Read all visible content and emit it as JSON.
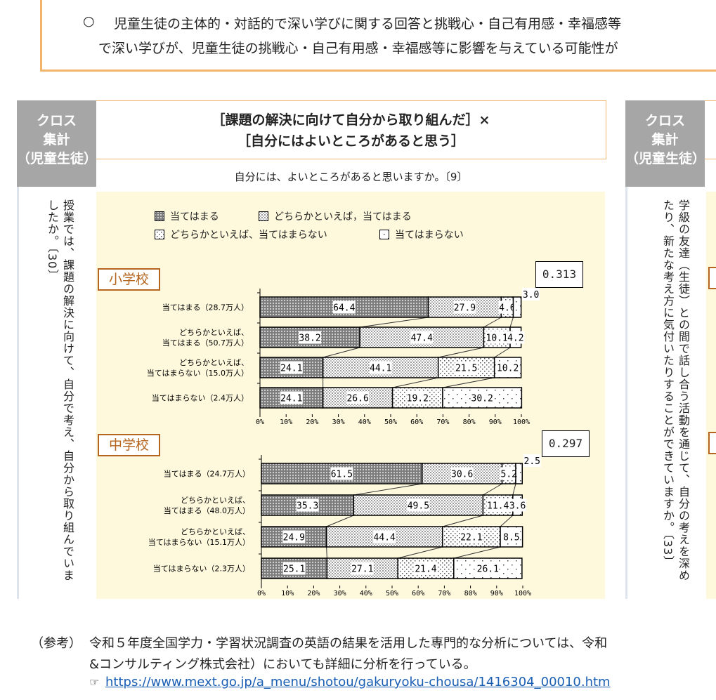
{
  "intro": {
    "bullet": "○",
    "line1": "児童生徒の主体的・対話的で深い学びに関する回答と挑戦心・自己有用感・幸福感等",
    "line2": "で深い学びが、児童生徒の挑戦心・自己有用感・幸福感等に影響を与えている可能性が"
  },
  "left_panel": {
    "badge": [
      "クロス",
      "集計",
      "（児童生徒）"
    ],
    "question": "授業では、課題の解決に向けて、自分で考え、自分から取り組んでいましたか。〔30〕"
  },
  "main": {
    "title_line1": "［課題の解決に向けて自分から取り組んだ］×",
    "title_line2": "［自分にはよいところがあると思う］",
    "subtitle": "自分には、よいところがあると思いますか。〔9〕",
    "legend": [
      "当てはまる",
      "どちらかといえば，当てはまる",
      "どちらかといえば、当てはまらない",
      "当てはまらない"
    ]
  },
  "right_panel": {
    "badge": [
      "クロス",
      "集計",
      "（児童生徒）"
    ],
    "question": "学級の友達（生徒）との間で話し合う活動を通じて、自分の考えを深めたり、新たな考え方に気付いたりすることができていますか。〔33〕"
  },
  "chart_data": [
    {
      "type": "bar",
      "orientation": "horizontal",
      "stacked": true,
      "title": "小学校",
      "coefficient": "0.313",
      "categories": [
        "当てはまる（28.7万人）",
        "どちらかといえば、\n当てはまる（50.7万人）",
        "どちらかといえば、\n当てはまらない（15.0万人）",
        "当てはまらない（2.4万人）"
      ],
      "series_values": [
        [
          64.4,
          27.9,
          4.6,
          3.0
        ],
        [
          38.2,
          47.4,
          10.1,
          4.2
        ],
        [
          24.1,
          44.1,
          21.5,
          10.2
        ],
        [
          24.1,
          26.6,
          19.2,
          30.2
        ]
      ],
      "labels": [
        [
          "64.4",
          "27.9",
          "4.6",
          "3.0"
        ],
        [
          "38.2",
          "47.4",
          "10.1",
          "4.2"
        ],
        [
          "24.1",
          "44.1",
          "21.5",
          "10.2"
        ],
        [
          "24.1",
          "26.6",
          "19.2",
          "30.2"
        ]
      ],
      "xlim": [
        0,
        100
      ],
      "xticks": [
        "0%",
        "10%",
        "20%",
        "30%",
        "40%",
        "50%",
        "60%",
        "70%",
        "80%",
        "90%",
        "100%"
      ]
    },
    {
      "type": "bar",
      "orientation": "horizontal",
      "stacked": true,
      "title": "中学校",
      "coefficient": "0.297",
      "categories": [
        "当てはまる（24.7万人）",
        "どちらかといえば、\n当てはまる（48.0万人）",
        "どちらかといえば、\n当てはまらない（15.1万人）",
        "当てはまらない（2.3万人）"
      ],
      "series_values": [
        [
          61.5,
          30.6,
          5.2,
          2.5
        ],
        [
          35.3,
          49.5,
          11.4,
          3.6
        ],
        [
          24.9,
          44.4,
          22.1,
          8.5
        ],
        [
          25.1,
          27.1,
          21.4,
          26.1
        ]
      ],
      "labels": [
        [
          "61.5",
          "30.6",
          "5.2",
          "2.5"
        ],
        [
          "35.3",
          "49.5",
          "11.4",
          "3.6"
        ],
        [
          "24.9",
          "44.4",
          "22.1",
          "8.5"
        ],
        [
          "25.1",
          "27.1",
          "21.4",
          "26.1"
        ]
      ],
      "xlim": [
        0,
        100
      ],
      "xticks": [
        "0%",
        "10%",
        "20%",
        "30%",
        "40%",
        "50%",
        "60%",
        "70%",
        "80%",
        "90%",
        "100%"
      ]
    }
  ],
  "footer": {
    "label": "（参考）",
    "line1": "令和５年度全国学力・学習状況調査の英語の結果を活用した専門的な分析については、令和",
    "line2": "&コンサルティング株式会社）においても詳細に分析を行っている。",
    "icon": "☞",
    "link": "https://www.mext.go.jp/a_menu/shotou/gakuryoku-chousa/1416304_00010.htm"
  },
  "colors": {
    "accent_orange": "#f2b36b",
    "badge_gray": "#a6a6a6",
    "chart_bg": "#fef9dd",
    "school_label": "#b5651d",
    "link": "#1a5fb4"
  }
}
